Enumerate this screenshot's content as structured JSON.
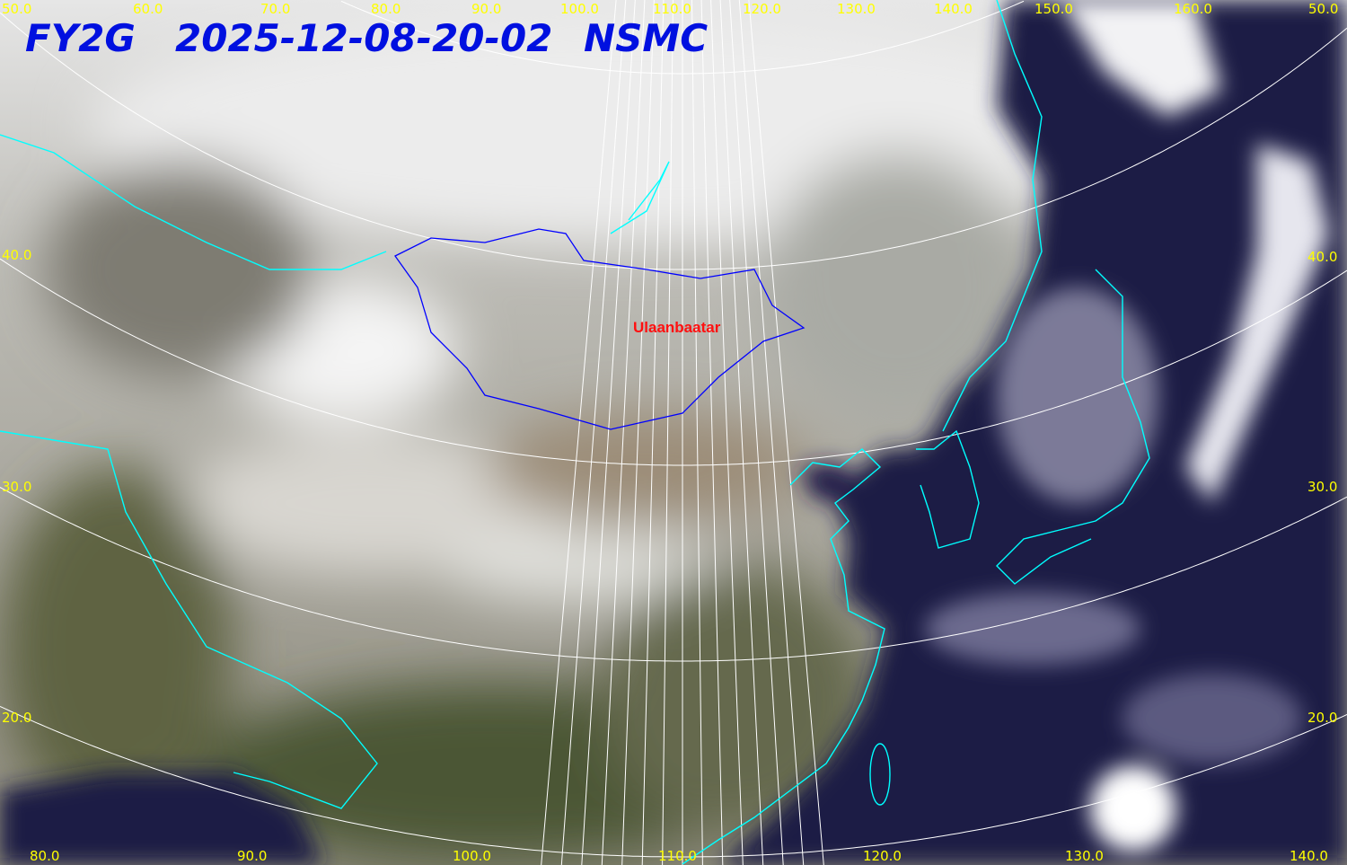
{
  "header": {
    "satellite": "FY2G",
    "timestamp": "2025-12-08-20-02",
    "agency": "NSMC"
  },
  "map": {
    "type": "satellite true-color composite with lat/lon graticule",
    "city_label": "Ulaanbaatar",
    "colors": {
      "graticule": "#ffffff",
      "coastline": "#00ffff",
      "mongolia_border": "#0000ff",
      "label": "#ffff00",
      "title": "#0010e0",
      "city": "#ff1010",
      "ocean": "#1c1a40"
    },
    "top_lon_labels": [
      "50.0",
      "60.0",
      "70.0",
      "80.0",
      "90.0",
      "100.0",
      "110.0",
      "120.0",
      "130.0",
      "140.0",
      "150.0",
      "160.0"
    ],
    "top_right_lat_label": "50.0",
    "left_lat_labels": [
      "40.0",
      "30.0",
      "20.0"
    ],
    "right_lat_labels": [
      "40.0",
      "30.0",
      "20.0"
    ],
    "bottom_lon_labels": [
      "80.0",
      "90.0",
      "100.0",
      "110.0",
      "120.0",
      "130.0",
      "140.0"
    ]
  }
}
